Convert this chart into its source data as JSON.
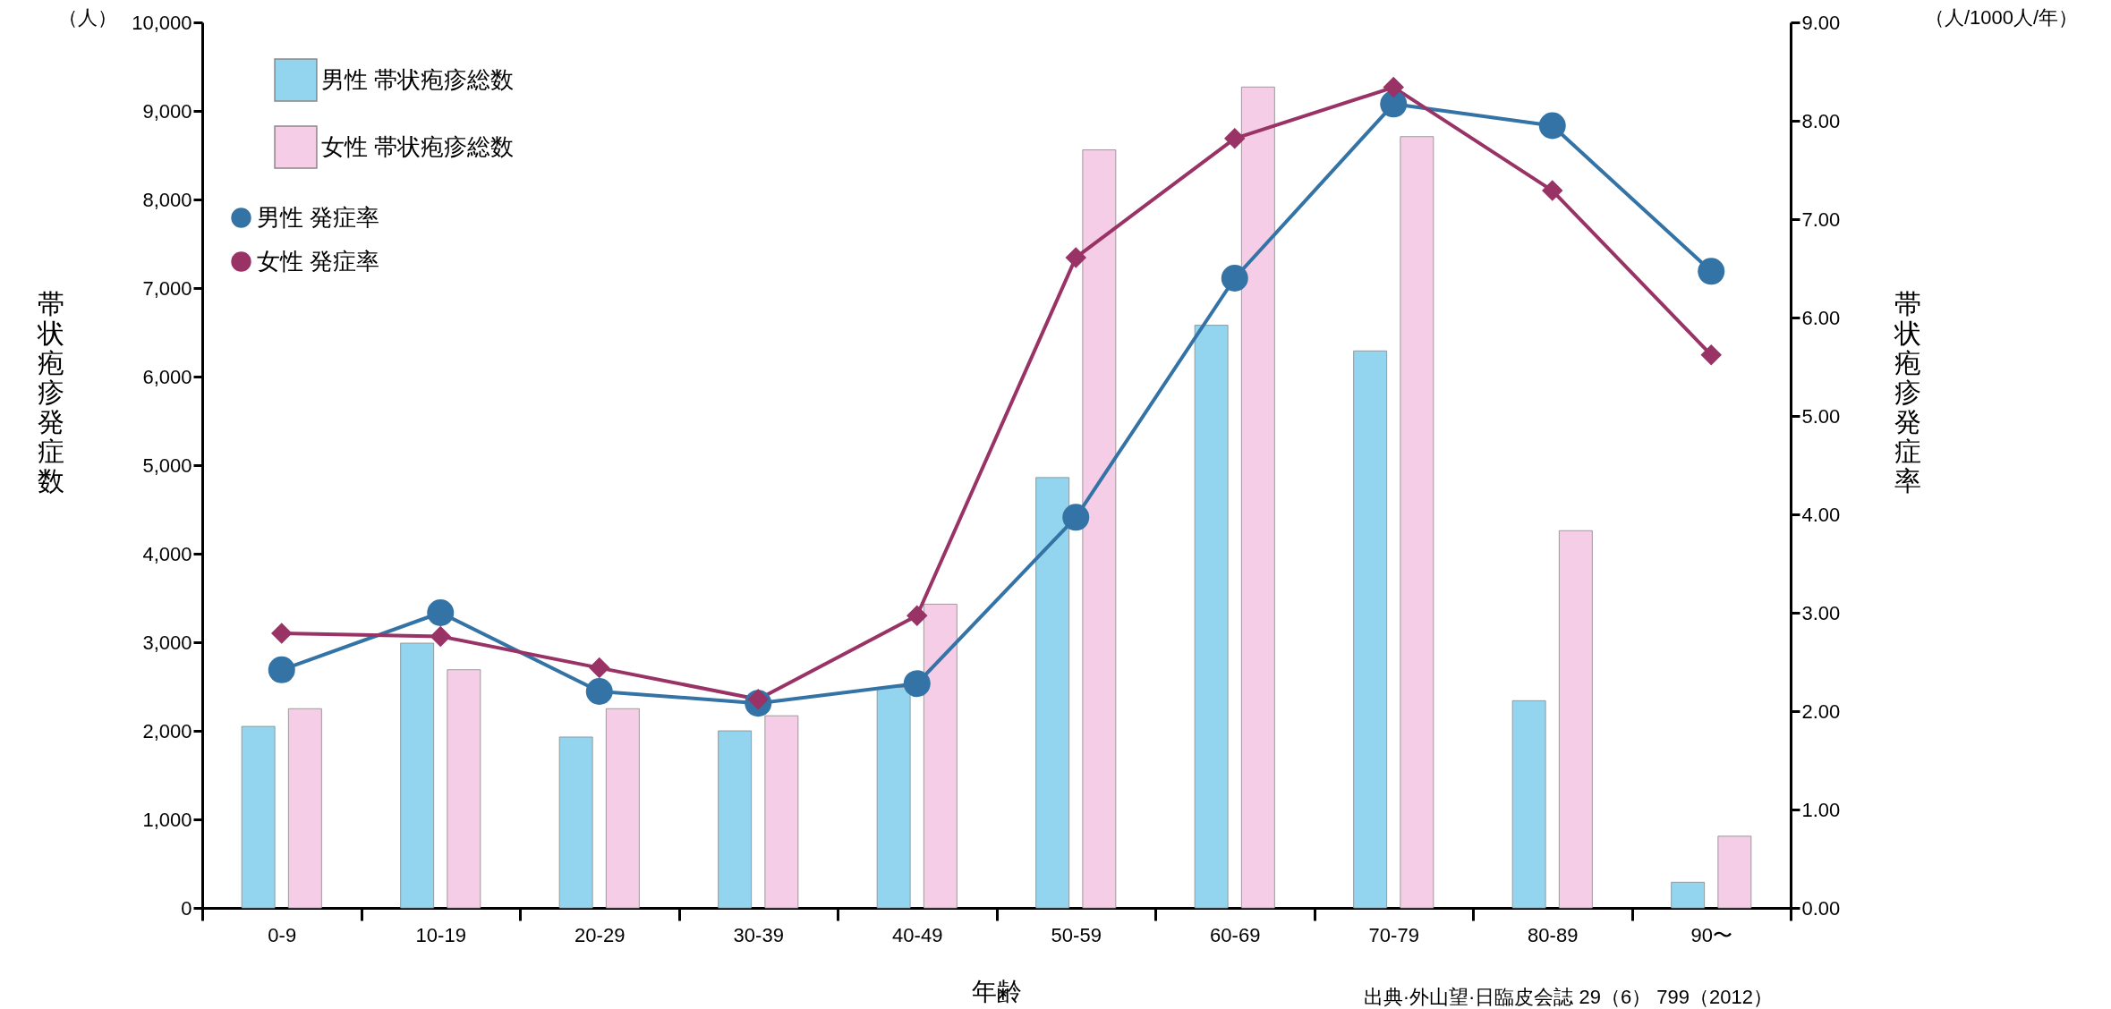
{
  "chart_data": {
    "type": "bar",
    "xlabel": "年齢",
    "ylabel": "帯状疱疹発症数",
    "y2label": "帯状疱疹発症率",
    "categories": [
      "0-9",
      "10-19",
      "20-29",
      "30-39",
      "40-49",
      "50-59",
      "60-69",
      "70-79",
      "80-89",
      "90〜"
    ],
    "series": [
      {
        "name": "男性 帯状疱疹総数",
        "type": "bar",
        "color": "#93d5ef",
        "values": [
          2050,
          2990,
          1930,
          2000,
          2490,
          4860,
          6580,
          6290,
          2340,
          290
        ]
      },
      {
        "name": "女性 帯状疱疹総数",
        "type": "bar",
        "color": "#f5cde6",
        "values": [
          2250,
          2690,
          2250,
          2170,
          3430,
          8560,
          9270,
          8710,
          4260,
          810
        ]
      },
      {
        "name": "男性 発症率",
        "type": "line",
        "axis": "y2",
        "marker": "circle",
        "color": "#3373a5",
        "values": [
          2.42,
          3.0,
          2.2,
          2.08,
          2.28,
          3.97,
          6.4,
          8.17,
          7.95,
          6.47
        ]
      },
      {
        "name": "女性 発症率",
        "type": "line",
        "axis": "y2",
        "marker": "diamond",
        "color": "#993366",
        "values": [
          2.79,
          2.76,
          2.44,
          2.12,
          2.97,
          6.61,
          7.82,
          8.34,
          7.29,
          5.62
        ]
      }
    ],
    "ylim": [
      0,
      10000
    ],
    "yticks": [
      {
        "value": 0,
        "label": "0"
      },
      {
        "value": 1000,
        "label": "1,000"
      },
      {
        "value": 2000,
        "label": "2,000"
      },
      {
        "value": 3000,
        "label": "3,000"
      },
      {
        "value": 4000,
        "label": "4,000"
      },
      {
        "value": 5000,
        "label": "5,000"
      },
      {
        "value": 6000,
        "label": "6,000"
      },
      {
        "value": 7000,
        "label": "7,000"
      },
      {
        "value": 8000,
        "label": "8,000"
      },
      {
        "value": 9000,
        "label": "9,000"
      },
      {
        "value": 10000,
        "label": "10,000"
      }
    ],
    "y2lim": [
      0,
      9
    ],
    "y2ticks": [
      {
        "value": 0,
        "label": "0.00"
      },
      {
        "value": 1,
        "label": "1.00"
      },
      {
        "value": 2,
        "label": "2.00"
      },
      {
        "value": 3,
        "label": "3.00"
      },
      {
        "value": 4,
        "label": "4.00"
      },
      {
        "value": 5,
        "label": "5.00"
      },
      {
        "value": 6,
        "label": "6.00"
      },
      {
        "value": 7,
        "label": "7.00"
      },
      {
        "value": 8,
        "label": "8.00"
      },
      {
        "value": 9,
        "label": "9.00"
      }
    ],
    "legend": "top left",
    "grid": false,
    "annotations": [
      "（人）",
      "（人/1000人/年）",
      "出典·外山望·日臨皮会誌 29（6） 799（2012）"
    ]
  }
}
